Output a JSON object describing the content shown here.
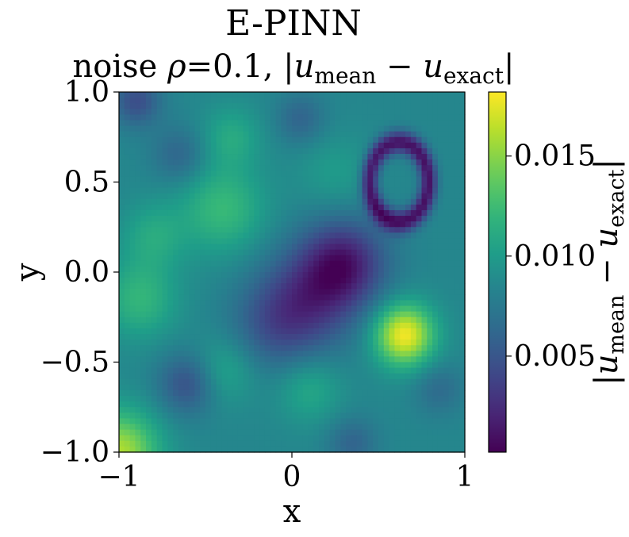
{
  "chart_data": {
    "type": "heatmap",
    "title": "E-PINN",
    "subtitle": {
      "prefix": "noise ",
      "rho": "ρ",
      "eq": "=0.1, |",
      "u1": "u",
      "sub1": "mean",
      "minus": " − ",
      "u2": "u",
      "sub2": "exact",
      "bar": "|"
    },
    "xlabel": "x",
    "ylabel": "y",
    "xlim": [
      -1,
      1
    ],
    "ylim": [
      -1,
      1
    ],
    "xticks": [
      -1,
      0,
      1
    ],
    "xtick_labels": [
      "−1",
      "0",
      "1"
    ],
    "yticks": [
      -1.0,
      -0.5,
      0.0,
      0.5,
      1.0
    ],
    "ytick_labels": [
      "−1.0",
      "−0.5",
      "0.0",
      "0.5",
      "1.0"
    ],
    "colormap": "viridis",
    "colorbar": {
      "range": [
        0.0002,
        0.0182
      ],
      "ticks": [
        0.005,
        0.01,
        0.015
      ],
      "tick_labels": [
        "0.005",
        "0.010",
        "0.015"
      ],
      "label": {
        "bar": "|",
        "u1": "u",
        "sub1": "mean",
        "minus": " − ",
        "u2": "u",
        "sub2": "exact"
      }
    },
    "grid_resolution": 64,
    "features": [
      {
        "kind": "base",
        "value": 0.0085
      },
      {
        "kind": "peak",
        "x": 0.65,
        "y": -0.35,
        "sigma": 0.12,
        "amplitude": 0.0095
      },
      {
        "kind": "corner-peak",
        "x": -1.0,
        "y": -1.0,
        "sigma": 0.16,
        "amplitude": 0.0075
      },
      {
        "kind": "ring-min",
        "x": 0.62,
        "y": 0.5,
        "rx": 0.17,
        "ry": 0.22,
        "width": 0.035,
        "amplitude": -0.0075
      },
      {
        "kind": "valley",
        "x": 0.3,
        "y": 0.05,
        "sigma": 0.17,
        "amplitude": -0.0065
      },
      {
        "kind": "valley",
        "x": 0.1,
        "y": -0.15,
        "sigma": 0.2,
        "amplitude": -0.0045
      },
      {
        "kind": "valley",
        "x": -0.1,
        "y": -0.3,
        "sigma": 0.18,
        "amplitude": -0.003
      },
      {
        "kind": "valley",
        "x": -0.6,
        "y": -0.62,
        "sigma": 0.12,
        "amplitude": -0.004
      },
      {
        "kind": "valley",
        "x": -0.65,
        "y": 0.65,
        "sigma": 0.11,
        "amplitude": -0.0025
      },
      {
        "kind": "valley",
        "x": -0.9,
        "y": 0.95,
        "sigma": 0.1,
        "amplitude": -0.004
      },
      {
        "kind": "valley",
        "x": 0.05,
        "y": 0.85,
        "sigma": 0.1,
        "amplitude": -0.0025
      },
      {
        "kind": "valley",
        "x": 0.35,
        "y": -0.95,
        "sigma": 0.1,
        "amplitude": -0.0025
      },
      {
        "kind": "valley",
        "x": 0.85,
        "y": -0.65,
        "sigma": 0.1,
        "amplitude": -0.002
      },
      {
        "kind": "ridge",
        "x": -0.4,
        "y": 0.35,
        "sigma": 0.17,
        "amplitude": 0.0038
      },
      {
        "kind": "ridge",
        "x": -0.35,
        "y": 0.75,
        "sigma": 0.12,
        "amplitude": 0.0025
      },
      {
        "kind": "ridge",
        "x": -0.88,
        "y": -0.15,
        "sigma": 0.15,
        "amplitude": 0.0035
      },
      {
        "kind": "ridge",
        "x": -0.8,
        "y": 0.2,
        "sigma": 0.13,
        "amplitude": 0.0025
      },
      {
        "kind": "ridge",
        "x": -0.4,
        "y": -0.55,
        "sigma": 0.13,
        "amplitude": 0.0025
      },
      {
        "kind": "ridge",
        "x": 0.1,
        "y": -0.65,
        "sigma": 0.13,
        "amplitude": 0.0025
      },
      {
        "kind": "ridge",
        "x": 0.25,
        "y": 0.55,
        "sigma": 0.15,
        "amplitude": 0.0015
      }
    ]
  }
}
